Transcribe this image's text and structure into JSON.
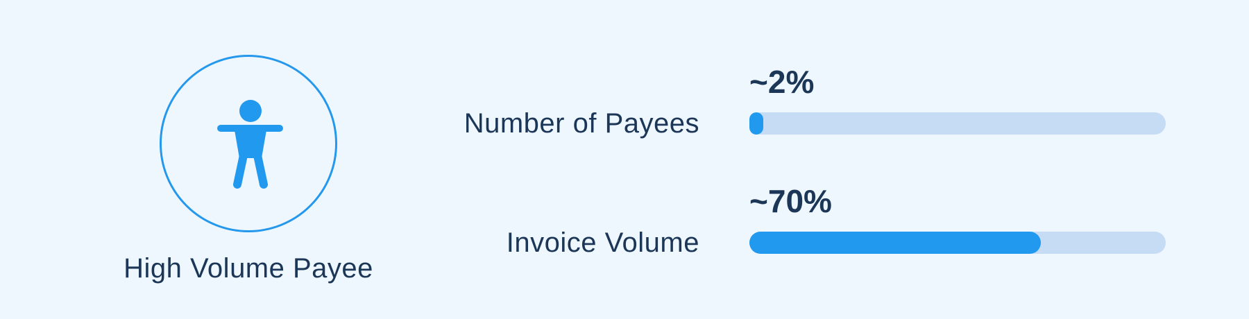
{
  "profile": {
    "icon": "person-icon",
    "label": "High Volume Payee"
  },
  "metrics": [
    {
      "label": "Number of Payees",
      "value_text": "~2%",
      "fraction": 0.02
    },
    {
      "label": "Invoice Volume",
      "value_text": "~70%",
      "fraction": 0.7
    }
  ],
  "colors": {
    "background": "#eff7fe",
    "accent": "#2199ee",
    "track": "#c5dcf4",
    "text": "#1b3656"
  }
}
